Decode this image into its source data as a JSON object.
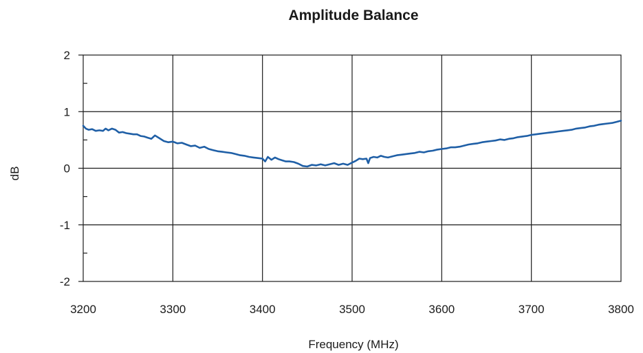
{
  "chart_data": {
    "type": "line",
    "title": "Amplitude Balance",
    "xlabel": "Frequency (MHz)",
    "ylabel": "dB",
    "xlim": [
      3200,
      3800
    ],
    "ylim": [
      -2,
      2
    ],
    "x_ticks": [
      3200,
      3300,
      3400,
      3500,
      3600,
      3700,
      3800
    ],
    "y_ticks": [
      2,
      1,
      0,
      -1,
      -2
    ],
    "x_tick_labels": [
      "3200",
      "3300",
      "3400",
      "3500",
      "3600",
      "3700",
      "3800"
    ],
    "y_tick_labels": [
      "2",
      "1",
      "0",
      "-1",
      "-2"
    ],
    "grid": true,
    "series": [
      {
        "color": "#1f5fa6",
        "x": [
          3200,
          3203,
          3206,
          3210,
          3214,
          3218,
          3222,
          3225,
          3228,
          3232,
          3236,
          3240,
          3244,
          3248,
          3252,
          3256,
          3260,
          3264,
          3268,
          3272,
          3276,
          3280,
          3285,
          3290,
          3295,
          3300,
          3305,
          3310,
          3315,
          3320,
          3325,
          3330,
          3335,
          3340,
          3345,
          3350,
          3355,
          3360,
          3365,
          3370,
          3375,
          3380,
          3385,
          3390,
          3395,
          3400,
          3403,
          3406,
          3410,
          3414,
          3418,
          3422,
          3426,
          3430,
          3435,
          3440,
          3445,
          3450,
          3455,
          3460,
          3465,
          3470,
          3475,
          3480,
          3485,
          3490,
          3495,
          3500,
          3504,
          3508,
          3512,
          3516,
          3518,
          3520,
          3524,
          3528,
          3532,
          3536,
          3540,
          3545,
          3550,
          3555,
          3560,
          3565,
          3570,
          3575,
          3580,
          3585,
          3590,
          3595,
          3600,
          3605,
          3610,
          3615,
          3620,
          3625,
          3630,
          3635,
          3640,
          3645,
          3650,
          3655,
          3660,
          3665,
          3670,
          3675,
          3680,
          3685,
          3690,
          3695,
          3700,
          3705,
          3710,
          3715,
          3720,
          3725,
          3730,
          3735,
          3740,
          3745,
          3750,
          3755,
          3760,
          3765,
          3770,
          3775,
          3780,
          3785,
          3790,
          3795,
          3800
        ],
        "y": [
          0.75,
          0.7,
          0.68,
          0.69,
          0.66,
          0.67,
          0.66,
          0.7,
          0.67,
          0.7,
          0.68,
          0.63,
          0.64,
          0.62,
          0.61,
          0.6,
          0.6,
          0.57,
          0.56,
          0.54,
          0.52,
          0.58,
          0.53,
          0.48,
          0.46,
          0.47,
          0.44,
          0.45,
          0.42,
          0.39,
          0.4,
          0.36,
          0.38,
          0.34,
          0.32,
          0.3,
          0.29,
          0.28,
          0.27,
          0.25,
          0.23,
          0.22,
          0.2,
          0.19,
          0.18,
          0.17,
          0.12,
          0.2,
          0.15,
          0.19,
          0.16,
          0.14,
          0.12,
          0.12,
          0.11,
          0.08,
          0.04,
          0.03,
          0.06,
          0.05,
          0.07,
          0.05,
          0.07,
          0.09,
          0.06,
          0.08,
          0.06,
          0.1,
          0.13,
          0.17,
          0.16,
          0.17,
          0.09,
          0.18,
          0.2,
          0.19,
          0.22,
          0.2,
          0.19,
          0.21,
          0.23,
          0.24,
          0.25,
          0.26,
          0.27,
          0.29,
          0.28,
          0.3,
          0.31,
          0.33,
          0.34,
          0.35,
          0.37,
          0.37,
          0.38,
          0.4,
          0.42,
          0.43,
          0.44,
          0.46,
          0.47,
          0.48,
          0.49,
          0.51,
          0.5,
          0.52,
          0.53,
          0.55,
          0.56,
          0.57,
          0.59,
          0.6,
          0.61,
          0.62,
          0.63,
          0.64,
          0.65,
          0.66,
          0.67,
          0.68,
          0.7,
          0.71,
          0.72,
          0.74,
          0.75,
          0.77,
          0.78,
          0.79,
          0.8,
          0.82,
          0.84
        ]
      }
    ]
  }
}
